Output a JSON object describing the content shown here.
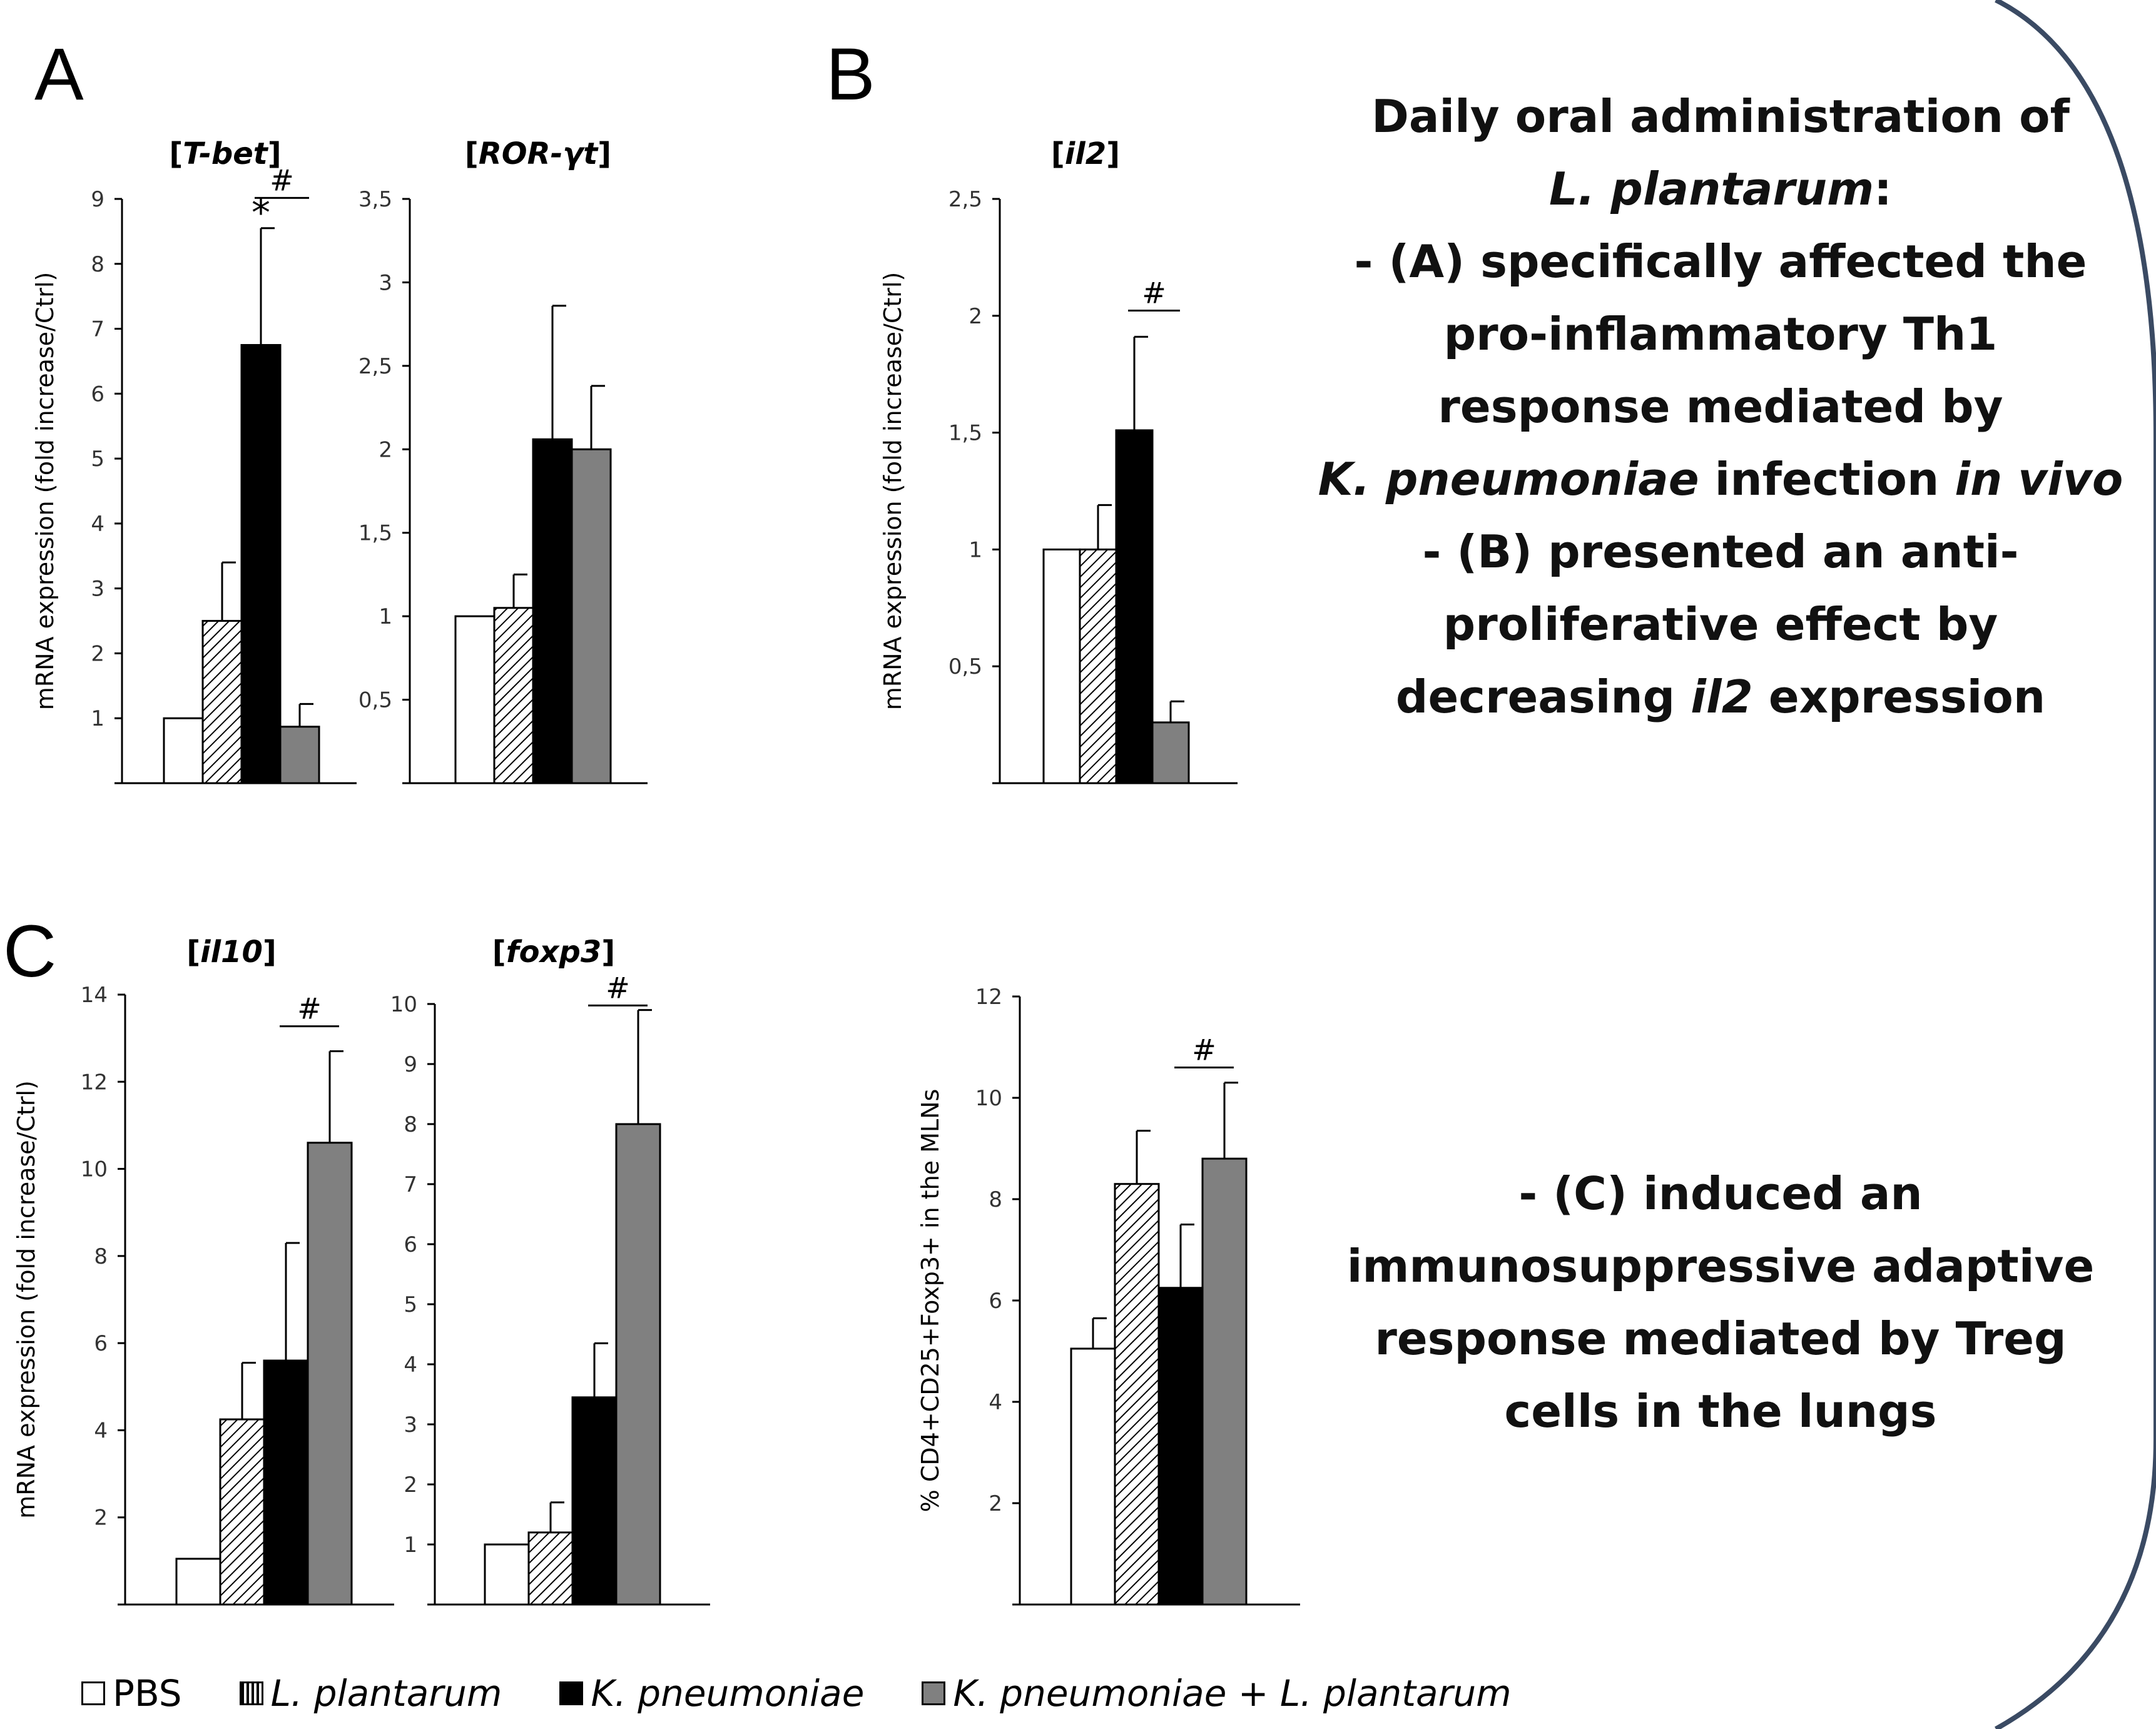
{
  "panel_letters": [
    "A",
    "B",
    "C"
  ],
  "summary_top": {
    "lines": [
      [
        {
          "t": "Daily oral administration of"
        }
      ],
      [
        {
          "t": "L. plantarum",
          "i": true
        },
        {
          "t": ":"
        }
      ],
      [
        {
          "t": "-    (A) specifically affected the"
        }
      ],
      [
        {
          "t": "pro-inflammatory Th1"
        }
      ],
      [
        {
          "t": "response mediated by"
        }
      ],
      [
        {
          "t": "K. pneumoniae",
          "i": true
        },
        {
          "t": " infection "
        },
        {
          "t": "in vivo",
          "i": true
        }
      ],
      [
        {
          "t": "-    (B) presented an anti-"
        }
      ],
      [
        {
          "t": "proliferative effect by"
        }
      ],
      [
        {
          "t": "decreasing "
        },
        {
          "t": "il2",
          "i": true
        },
        {
          "t": " expression"
        }
      ]
    ]
  },
  "summary_bottom": {
    "lines": [
      [
        {
          "t": "-    (C) induced an"
        }
      ],
      [
        {
          "t": "immunosuppressive adaptive"
        }
      ],
      [
        {
          "t": "response mediated by Treg"
        }
      ],
      [
        {
          "t": "cells in the lungs"
        }
      ]
    ]
  },
  "legend": [
    {
      "label": "PBS",
      "swatch": "white"
    },
    {
      "label": "L. plantarum",
      "swatch": "hatch"
    },
    {
      "label": "K. pneumoniae",
      "swatch": "black"
    },
    {
      "label": "K. pneumoniae + L. plantarum",
      "swatch": "gray"
    }
  ],
  "colors": {
    "pbs": "#ffffff",
    "k_pneumoniae": "#000000",
    "combo": "#808080",
    "hatch_line": "#000000",
    "axis": "#000000",
    "arc": "#3a4a63"
  },
  "chart_data": [
    {
      "id": "tbet",
      "type": "bar",
      "title_parts": [
        {
          "t": "["
        },
        {
          "t": "T-bet",
          "i": true
        },
        {
          "t": "]"
        }
      ],
      "ylabel": "mRNA  expression (fold increase/Ctrl)",
      "ylim": [
        0,
        9
      ],
      "ticks": [
        1,
        2,
        3,
        4,
        5,
        6,
        7,
        8,
        9
      ],
      "tick_labels": [
        "1",
        "2",
        "3",
        "4",
        "5",
        "6",
        "7",
        "8",
        "9"
      ],
      "values": [
        1,
        2.5,
        6.75,
        0.87
      ],
      "errors": [
        0,
        0.9,
        1.8,
        0.35
      ],
      "annotations": [
        {
          "bar": 2,
          "text": "*"
        }
      ],
      "brackets": [
        {
          "from": 2,
          "to": 3,
          "text": "#",
          "y": 8.9
        }
      ]
    },
    {
      "id": "rorgt",
      "type": "bar",
      "title_parts": [
        {
          "t": "["
        },
        {
          "t": "ROR-γt",
          "i": true
        },
        {
          "t": "]"
        }
      ],
      "ylabel": "",
      "ylim": [
        0,
        3.5
      ],
      "ticks": [
        0.5,
        1,
        1.5,
        2,
        2.5,
        3,
        3.5
      ],
      "tick_labels": [
        "0,5",
        "1",
        "1,5",
        "2",
        "2,5",
        "3",
        "3,5"
      ],
      "values": [
        1,
        1.05,
        2.06,
        2.0
      ],
      "errors": [
        0,
        0.2,
        0.8,
        0.38
      ],
      "annotations": [],
      "brackets": []
    },
    {
      "id": "il2",
      "type": "bar",
      "title_parts": [
        {
          "t": "["
        },
        {
          "t": "il2",
          "i": true
        },
        {
          "t": "]"
        }
      ],
      "ylabel": "mRNA  expression (fold increase/Ctrl)",
      "ylim": [
        0,
        2.5
      ],
      "ticks": [
        0.5,
        1,
        1.5,
        2,
        2.5
      ],
      "tick_labels": [
        "0,5",
        "1",
        "1,5",
        "2",
        "2,5"
      ],
      "values": [
        1,
        1,
        1.51,
        0.26
      ],
      "errors": [
        0,
        0.19,
        0.4,
        0.09
      ],
      "annotations": [],
      "brackets": [
        {
          "from": 2,
          "to": 3,
          "text": "#",
          "y": 1.99
        }
      ]
    },
    {
      "id": "il10",
      "type": "bar",
      "title_parts": [
        {
          "t": "["
        },
        {
          "t": "il10",
          "i": true
        },
        {
          "t": "]"
        }
      ],
      "ylabel": "mRNA  expression (fold increase/Ctrl)",
      "ylim": [
        0,
        14
      ],
      "ticks": [
        2,
        4,
        6,
        8,
        10,
        12,
        14
      ],
      "tick_labels": [
        "2",
        "4",
        "6",
        "8",
        "10",
        "12",
        "14"
      ],
      "values": [
        1.05,
        4.25,
        5.6,
        10.6
      ],
      "errors": [
        0,
        1.3,
        2.7,
        2.1
      ],
      "annotations": [],
      "brackets": [
        {
          "from": 2,
          "to": 3,
          "text": "#",
          "y": 13.1
        }
      ]
    },
    {
      "id": "foxp3",
      "type": "bar",
      "title_parts": [
        {
          "t": "["
        },
        {
          "t": "foxp3",
          "i": true
        },
        {
          "t": "]"
        }
      ],
      "ylabel": "",
      "ylim": [
        0,
        10
      ],
      "ticks": [
        1,
        2,
        3,
        4,
        5,
        6,
        7,
        8,
        9,
        10
      ],
      "tick_labels": [
        "1",
        "2",
        "3",
        "4",
        "5",
        "6",
        "7",
        "8",
        "9",
        "10"
      ],
      "values": [
        1,
        1.2,
        3.45,
        8.0
      ],
      "errors": [
        0,
        0.5,
        0.9,
        1.9
      ],
      "annotations": [],
      "brackets": [
        {
          "from": 2,
          "to": 3,
          "text": "#",
          "y": 9.85
        }
      ]
    },
    {
      "id": "treg",
      "type": "bar",
      "title_parts": [],
      "ylabel": "% CD4+CD25+Foxp3+ in the MLNs",
      "ylim": [
        0,
        12
      ],
      "ticks": [
        2,
        4,
        6,
        8,
        10,
        12
      ],
      "tick_labels": [
        "2",
        "4",
        "6",
        "8",
        "10",
        "12"
      ],
      "values": [
        5.05,
        8.3,
        6.25,
        8.8
      ],
      "errors": [
        0.6,
        1.05,
        1.25,
        1.5
      ],
      "annotations": [],
      "brackets": [
        {
          "from": 2,
          "to": 3,
          "text": "#",
          "y": 10.45
        }
      ]
    }
  ]
}
